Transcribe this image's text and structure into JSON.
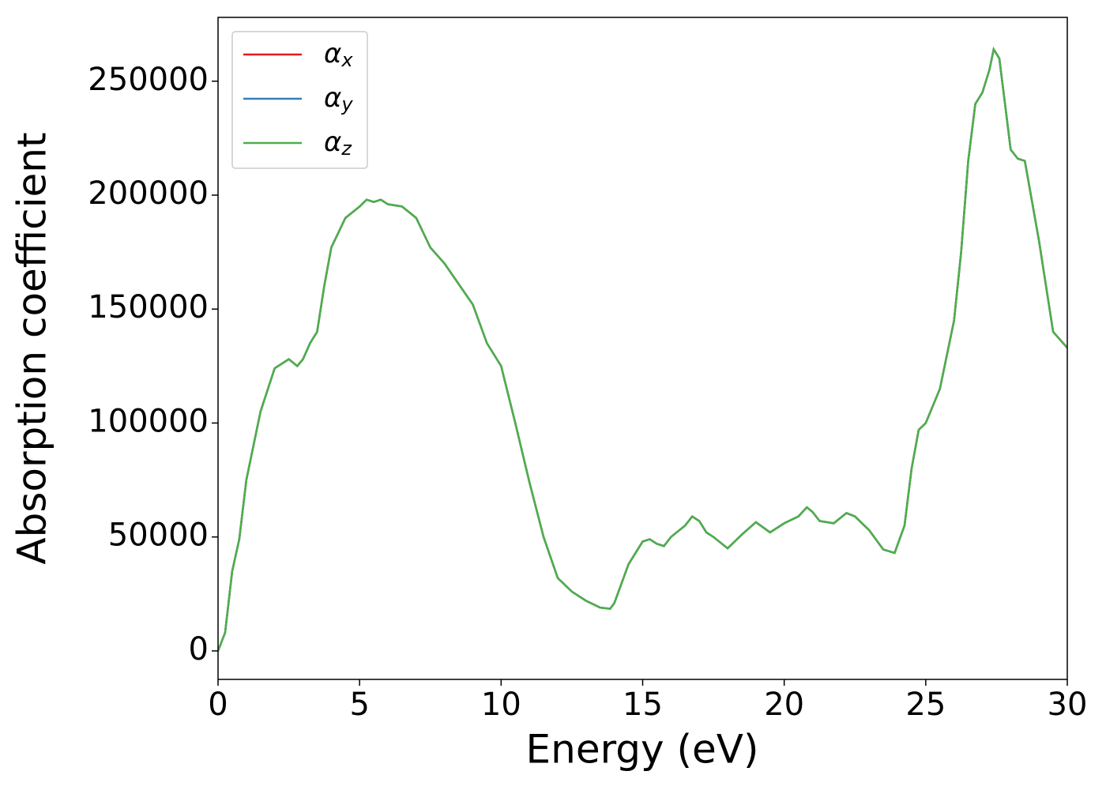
{
  "chart_data": {
    "type": "line",
    "x_label": "Energy (eV)",
    "y_label": "Absorption coefficient",
    "x": [
      0,
      0.25,
      0.5,
      0.75,
      1.0,
      1.5,
      2.0,
      2.5,
      2.8,
      3.0,
      3.25,
      3.5,
      3.75,
      4.0,
      4.5,
      5.0,
      5.25,
      5.5,
      5.75,
      6.0,
      6.5,
      7.0,
      7.5,
      8.0,
      8.5,
      9.0,
      9.5,
      10.0,
      10.5,
      11.0,
      11.5,
      12.0,
      12.5,
      13.0,
      13.5,
      13.85,
      14.0,
      14.5,
      15.0,
      15.25,
      15.5,
      15.75,
      16.0,
      16.5,
      16.75,
      17.0,
      17.25,
      17.5,
      18.0,
      18.5,
      19.0,
      19.5,
      20.0,
      20.5,
      20.8,
      21.0,
      21.25,
      21.75,
      22.2,
      22.5,
      23.0,
      23.5,
      23.9,
      24.25,
      24.5,
      24.75,
      25.0,
      25.5,
      26.0,
      26.25,
      26.5,
      26.75,
      27.0,
      27.25,
      27.4,
      27.6,
      28.0,
      28.25,
      28.5,
      29.0,
      29.5,
      30.0
    ],
    "series": [
      {
        "name": "αx",
        "color": "#e41a1c",
        "values": [
          0,
          8000,
          35000,
          49000,
          75000,
          105000,
          124000,
          128000,
          125000,
          128000,
          135000,
          140000,
          160000,
          177000,
          190000,
          195000,
          198000,
          197000,
          198000,
          196000,
          195000,
          190000,
          177000,
          170000,
          161000,
          152000,
          135000,
          125000,
          100000,
          74000,
          50000,
          32000,
          26000,
          22000,
          19000,
          18500,
          21000,
          38000,
          48000,
          49000,
          47000,
          46000,
          50000,
          55000,
          59000,
          57000,
          52000,
          50000,
          45000,
          51000,
          56500,
          52000,
          56000,
          59000,
          63000,
          61000,
          57000,
          56000,
          60500,
          59000,
          53000,
          44500,
          43000,
          55000,
          80000,
          97000,
          100000,
          115000,
          145000,
          175000,
          215000,
          240000,
          245000,
          255000,
          264000,
          260000,
          220000,
          216000,
          215000,
          180000,
          140000,
          133000
        ]
      },
      {
        "name": "αy",
        "color": "#377eb8",
        "values": [
          0,
          8000,
          35000,
          49000,
          75000,
          105000,
          124000,
          128000,
          125000,
          128000,
          135000,
          140000,
          160000,
          177000,
          190000,
          195000,
          198000,
          197000,
          198000,
          196000,
          195000,
          190000,
          177000,
          170000,
          161000,
          152000,
          135000,
          125000,
          100000,
          74000,
          50000,
          32000,
          26000,
          22000,
          19000,
          18500,
          21000,
          38000,
          48000,
          49000,
          47000,
          46000,
          50000,
          55000,
          59000,
          57000,
          52000,
          50000,
          45000,
          51000,
          56500,
          52000,
          56000,
          59000,
          63000,
          61000,
          57000,
          56000,
          60500,
          59000,
          53000,
          44500,
          43000,
          55000,
          80000,
          97000,
          100000,
          115000,
          145000,
          175000,
          215000,
          240000,
          245000,
          255000,
          264000,
          260000,
          220000,
          216000,
          215000,
          180000,
          140000,
          133000
        ]
      },
      {
        "name": "αz",
        "color": "#4daf4a",
        "values": [
          0,
          8000,
          35000,
          49000,
          75000,
          105000,
          124000,
          128000,
          125000,
          128000,
          135000,
          140000,
          160000,
          177000,
          190000,
          195000,
          198000,
          197000,
          198000,
          196000,
          195000,
          190000,
          177000,
          170000,
          161000,
          152000,
          135000,
          125000,
          100000,
          74000,
          50000,
          32000,
          26000,
          22000,
          19000,
          18500,
          21000,
          38000,
          48000,
          49000,
          47000,
          46000,
          50000,
          55000,
          59000,
          57000,
          52000,
          50000,
          45000,
          51000,
          56500,
          52000,
          56000,
          59000,
          63000,
          61000,
          57000,
          56000,
          60500,
          59000,
          53000,
          44500,
          43000,
          55000,
          80000,
          97000,
          100000,
          115000,
          145000,
          175000,
          215000,
          240000,
          245000,
          255000,
          264000,
          260000,
          220000,
          216000,
          215000,
          180000,
          140000,
          133000
        ]
      }
    ],
    "xlim": [
      0,
      30
    ],
    "xticks": [
      0,
      5,
      10,
      15,
      20,
      25,
      30
    ],
    "ylim": [
      -12500,
      278000
    ],
    "yticks": [
      0,
      50000,
      100000,
      150000,
      200000,
      250000
    ],
    "legend": "upper left",
    "grid": false
  }
}
